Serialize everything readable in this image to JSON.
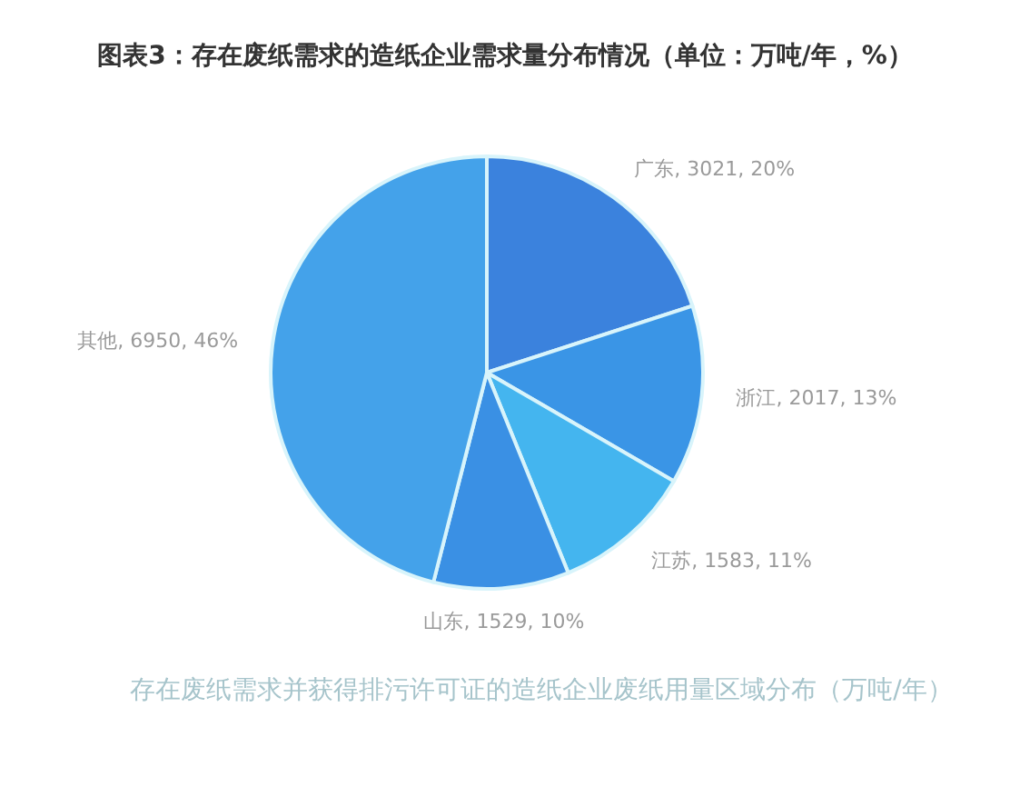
{
  "chart_data": {
    "type": "pie",
    "title": "图表3：存在废纸需求的造纸企业需求量分布情况（单位：万吨/年，%）",
    "categories": [
      "广东",
      "浙江",
      "江苏",
      "山东",
      "其他"
    ],
    "values": [
      3021,
      2017,
      1583,
      1529,
      6950
    ],
    "colors": [
      "#3b82dd",
      "#3a95e6",
      "#44b5ef",
      "#3a90e4",
      "#44a2ea"
    ],
    "value_labels": [
      "3021, 20%",
      "2017, 13%",
      "1583, 11%",
      "1529, 10%",
      "6950, 46%"
    ],
    "annotations": [
      "存在废纸需求并获得排污许可证的造纸企业废纸用量区域分布（万吨/年）"
    ]
  }
}
